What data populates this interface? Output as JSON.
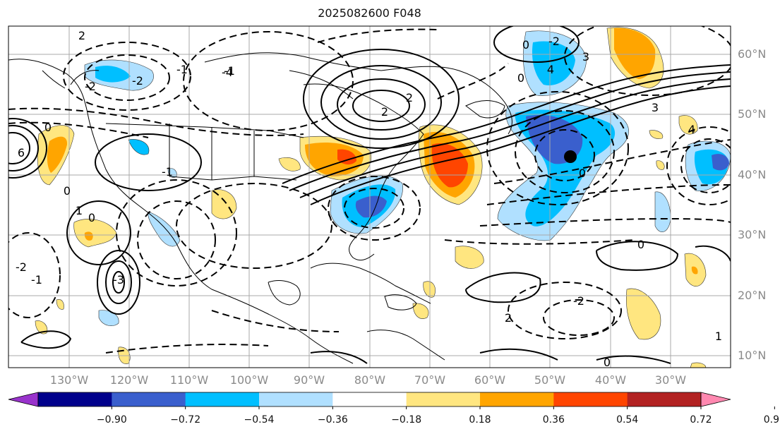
{
  "title": "2025082600 F048",
  "lat_labels": [
    "60°N",
    "50°N",
    "40°N",
    "30°N",
    "20°N",
    "10°N"
  ],
  "lon_labels": [
    "130°W",
    "120°W",
    "110°W",
    "100°W",
    "90°W",
    "80°W",
    "70°W",
    "60°W",
    "50°W",
    "40°W",
    "30°W"
  ],
  "colorbar": {
    "ticks": [
      "−0.90",
      "−0.72",
      "−0.54",
      "−0.36",
      "−0.18",
      "0.18",
      "0.36",
      "0.54",
      "0.72",
      "0.90"
    ],
    "colors": [
      "#9933cc",
      "#00008b",
      "#3a5fcd",
      "#00bfff",
      "#b0e0ff",
      "#ffffff",
      "#ffe680",
      "#ffa500",
      "#ff4500",
      "#b22222",
      "#ff88b0"
    ]
  },
  "contour_labels": [
    "-2",
    "-2",
    "-1",
    "-1",
    "0",
    "0",
    "0",
    "0",
    "2",
    "2",
    "2",
    "3",
    "3",
    "4",
    "4",
    "-4",
    "6",
    "-2",
    "-1",
    "-3",
    "2",
    "1",
    "0",
    "1",
    "0",
    "-2",
    "0",
    "-1",
    "-2",
    "0"
  ],
  "marker": "filled-circle"
}
